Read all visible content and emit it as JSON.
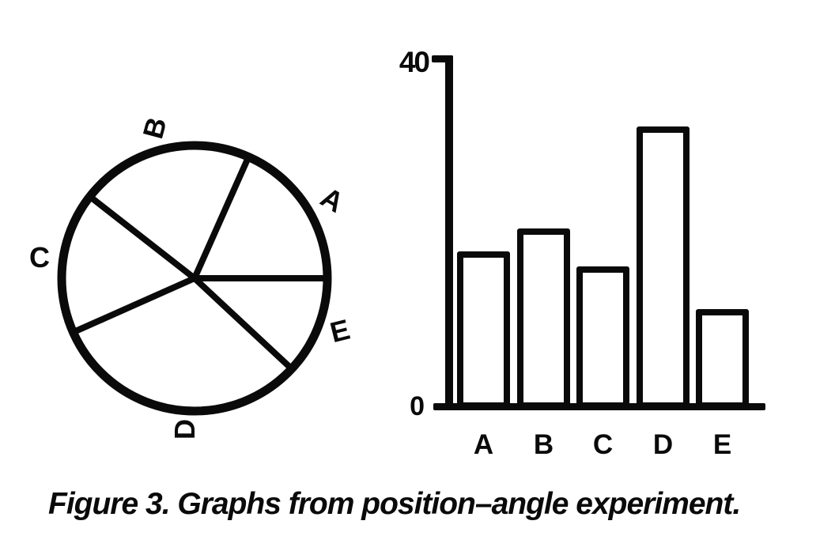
{
  "figure": {
    "caption": "Figure 3. Graphs from position–angle experiment."
  },
  "colors": {
    "ink": "#0a0a0a",
    "background": "#ffffff"
  },
  "chart_data": [
    {
      "type": "pie",
      "title": "",
      "style": "unfilled-outline",
      "start_angle_deg": 0,
      "direction": "counterclockwise",
      "slices": [
        {
          "label": "A",
          "angle_deg": 66
        },
        {
          "label": "B",
          "angle_deg": 76
        },
        {
          "label": "C",
          "angle_deg": 62
        },
        {
          "label": "D",
          "angle_deg": 113
        },
        {
          "label": "E",
          "angle_deg": 43
        }
      ]
    },
    {
      "type": "bar",
      "title": "",
      "categories": [
        "A",
        "B",
        "C",
        "D",
        "E"
      ],
      "values": [
        18,
        20.6,
        16.3,
        32.3,
        11.4
      ],
      "ylim": [
        0,
        40
      ],
      "y_tick_labels": [
        "0",
        "40"
      ],
      "xlabel": "",
      "ylabel": "",
      "bar_fill": "none",
      "grid": false,
      "legend": "none"
    }
  ]
}
